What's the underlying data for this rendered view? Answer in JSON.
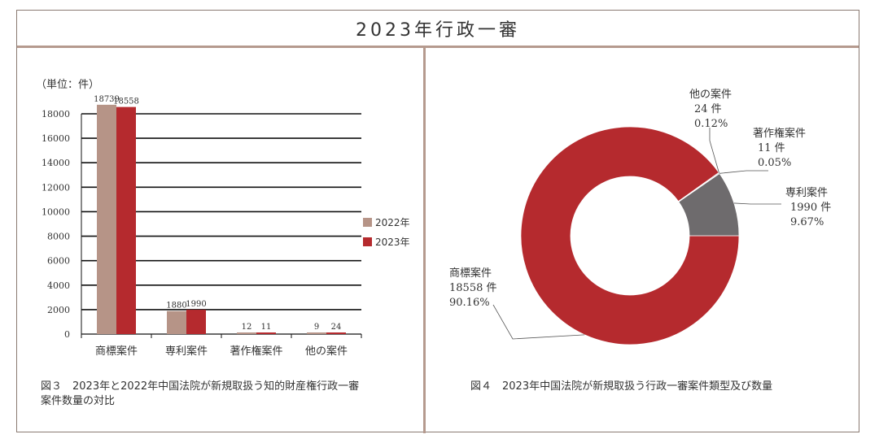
{
  "title": "2023年行政一審",
  "colors": {
    "y2022": "#b69487",
    "y2023": "#b52a2e",
    "other": "#6e6b6d",
    "frame": "#b59a8e"
  },
  "left_panel": {
    "unit": "（単位：件）",
    "caption_line1": "図３　2023年と2022年中国法院が新規取扱う知的財産権行政一審",
    "caption_line2": "案件数量の対比"
  },
  "right_panel": {
    "caption": "図４　2023年中国法院が新規取扱う行政一審案件類型及び数量"
  },
  "chart_data": [
    {
      "type": "bar",
      "categories": [
        "商標案件",
        "専利案件",
        "著作権案件",
        "他の案件"
      ],
      "series": [
        {
          "name": "2022年",
          "values": [
            18739,
            1880,
            12,
            9
          ]
        },
        {
          "name": "2023年",
          "values": [
            18558,
            1990,
            11,
            24
          ]
        }
      ],
      "yticks": [
        "0",
        "2000",
        "4000",
        "6000",
        "8000",
        "10000",
        "12000",
        "14000",
        "16000",
        "18000"
      ],
      "ylim": [
        0,
        18000
      ],
      "ylabel": "（単位：件）",
      "legend_position": "right",
      "grid": true
    },
    {
      "type": "pie",
      "style": "donut",
      "slices": [
        {
          "name": "商標案件",
          "count_label": "18558 件",
          "value": 18558,
          "percent": "90.16%"
        },
        {
          "name": "専利案件",
          "count_label": "1990 件",
          "value": 1990,
          "percent": "9.67%"
        },
        {
          "name": "著作権案件",
          "count_label": "11 件",
          "value": 11,
          "percent": "0.05%"
        },
        {
          "name": "他の案件",
          "count_label": "24 件",
          "value": 24,
          "percent": "0.12%"
        }
      ]
    }
  ]
}
